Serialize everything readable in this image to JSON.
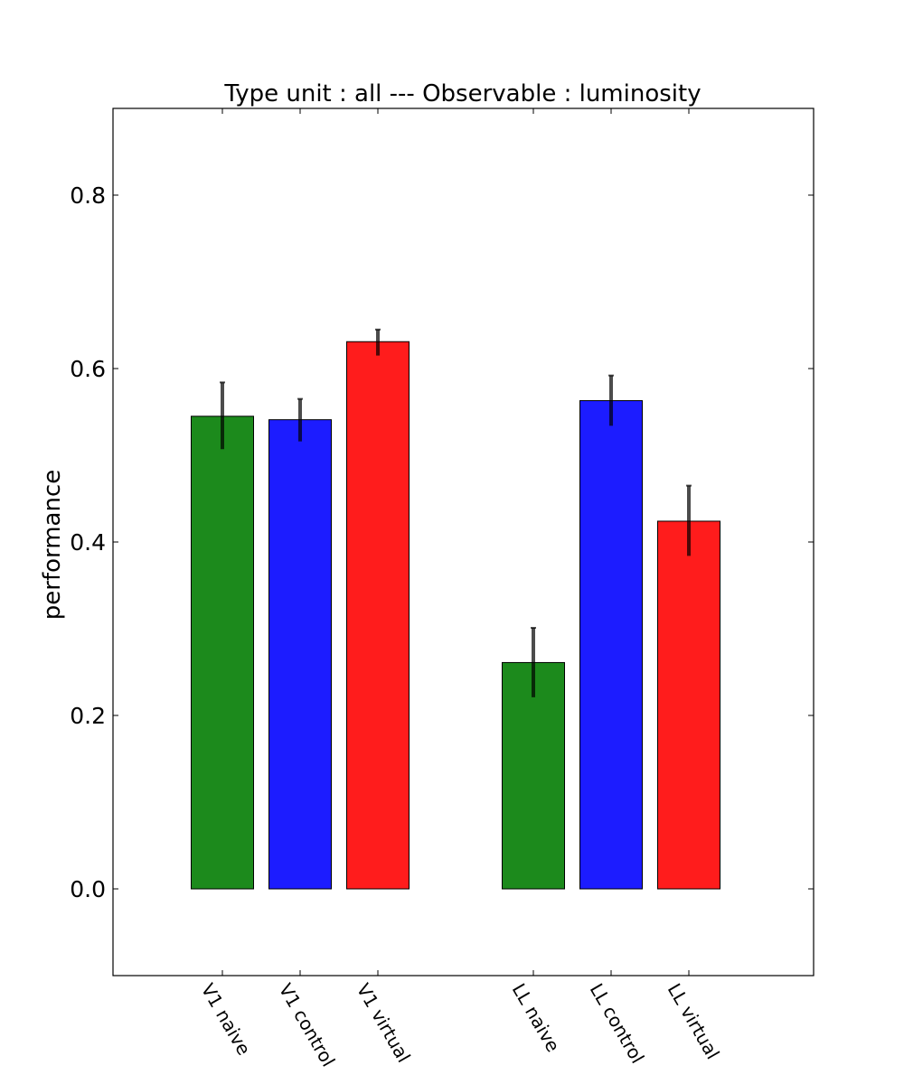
{
  "chart_data": {
    "type": "bar",
    "title": "Type unit : all --- Observable : luminosity",
    "xlabel": "",
    "ylabel": "performance",
    "ylim": [
      -0.1,
      0.9
    ],
    "yticks": [
      0.0,
      0.2,
      0.4,
      0.6,
      0.8
    ],
    "ytick_labels": [
      "0.0",
      "0.2",
      "0.4",
      "0.6",
      "0.8"
    ],
    "grid": false,
    "categories": [
      "V1 naive",
      "V1 control",
      "V1 virtual",
      "LL naive",
      "LL control",
      "LL virtual"
    ],
    "values": [
      0.545,
      0.541,
      0.631,
      0.261,
      0.563,
      0.424
    ],
    "error_low": [
      0.507,
      0.516,
      0.615,
      0.221,
      0.534,
      0.384
    ],
    "error_high": [
      0.584,
      0.565,
      0.645,
      0.301,
      0.592,
      0.465
    ],
    "bar_colors": [
      "#1c8a1c",
      "#1c1cff",
      "#ff1c1c",
      "#1c8a1c",
      "#1c1cff",
      "#ff1c1c"
    ],
    "errorbar_color": "#000000"
  }
}
